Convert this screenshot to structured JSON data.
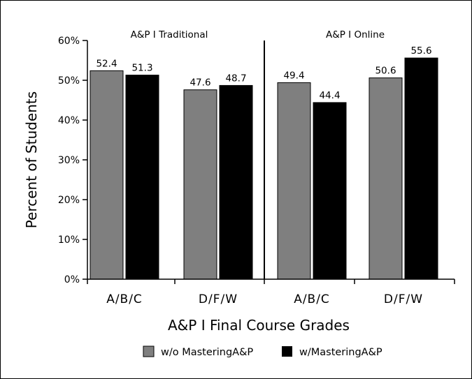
{
  "chart_data": {
    "type": "bar",
    "xlabel": "A&P I Final Course Grades",
    "ylabel": "Percent of Students",
    "ylim": [
      0,
      60
    ],
    "yticks": [
      "0%",
      "10%",
      "20%",
      "30%",
      "40%",
      "50%",
      "60%"
    ],
    "groups": [
      "A&P I Traditional",
      "A&P I Online"
    ],
    "categories": [
      "A/B/C",
      "D/F/W",
      "A/B/C",
      "D/F/W"
    ],
    "series": [
      {
        "name": "w/o MasteringA&P",
        "color": "#7f7f7f",
        "values": [
          52.4,
          47.6,
          49.4,
          50.6
        ]
      },
      {
        "name": "w/MasteringA&P",
        "color": "#000000",
        "values": [
          51.3,
          48.7,
          44.4,
          55.6
        ]
      }
    ],
    "value_labels": [
      [
        "52.4",
        "47.6",
        "49.4",
        "50.6"
      ],
      [
        "51.3",
        "48.7",
        "44.4",
        "55.6"
      ]
    ],
    "legend_position": "bottom",
    "grid": false
  }
}
